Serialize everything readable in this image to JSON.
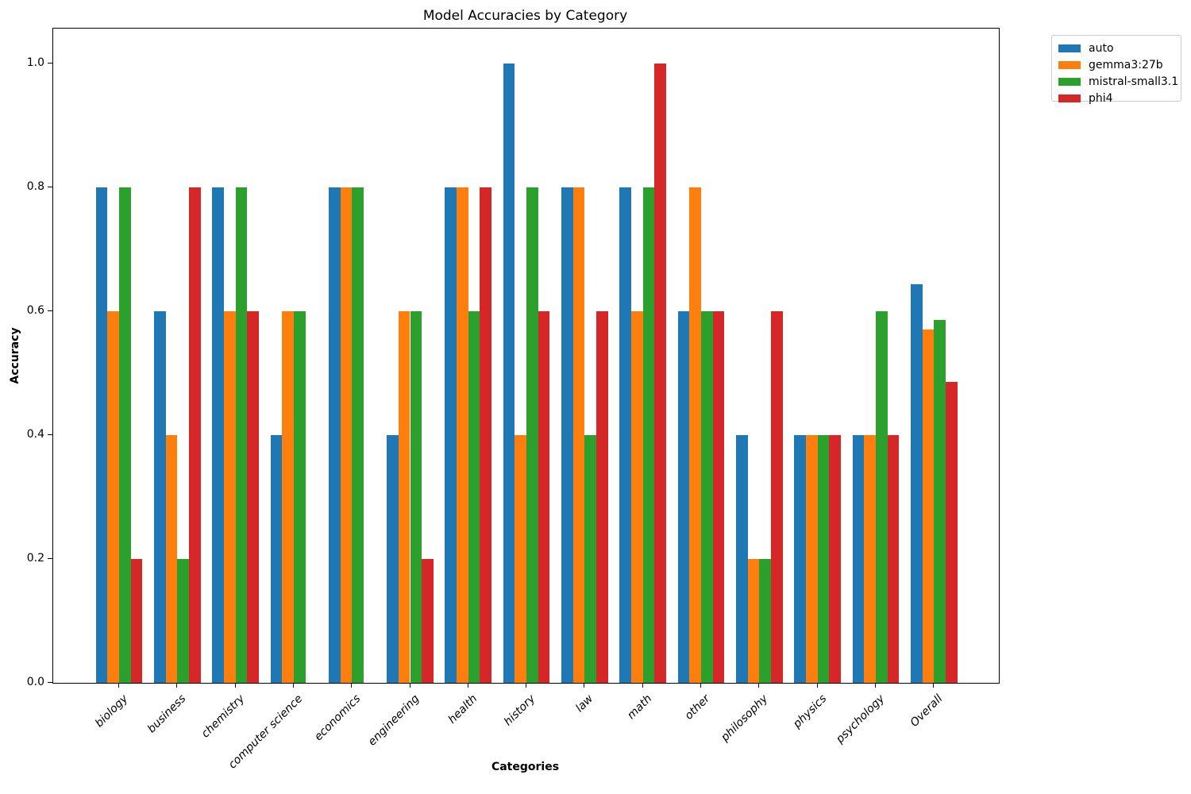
{
  "title": "Model Accuracies by Category",
  "axes": {
    "x_label": "Categories",
    "y_label": "Accuracy",
    "y_tick_labels": [
      "0.0",
      "0.2",
      "0.4",
      "0.6",
      "0.8",
      "1.0"
    ]
  },
  "chart_data": {
    "type": "bar",
    "title": "Model Accuracies by Category",
    "xlabel": "Categories",
    "ylabel": "Accuracy",
    "ylim": [
      0,
      1.056
    ],
    "grid": false,
    "legend_position": "upper right, outside plot area",
    "categories": [
      "biology",
      "business",
      "chemistry",
      "computer science",
      "economics",
      "engineering",
      "health",
      "history",
      "law",
      "math",
      "other",
      "philosophy",
      "physics",
      "psychology",
      "Overall"
    ],
    "series": [
      {
        "name": "auto",
        "color": "#1f77b4",
        "values": [
          0.8,
          0.6,
          0.8,
          0.4,
          0.8,
          0.4,
          0.8,
          1.0,
          0.8,
          0.8,
          0.6,
          0.4,
          0.4,
          0.4,
          0.643
        ]
      },
      {
        "name": "gemma3:27b",
        "color": "#ff7f0e",
        "values": [
          0.6,
          0.4,
          0.6,
          0.6,
          0.8,
          0.6,
          0.8,
          0.4,
          0.8,
          0.6,
          0.8,
          0.2,
          0.4,
          0.4,
          0.571
        ]
      },
      {
        "name": "mistral-small3.1",
        "color": "#2ca02c",
        "values": [
          0.8,
          0.2,
          0.8,
          0.6,
          0.8,
          0.6,
          0.6,
          0.8,
          0.4,
          0.8,
          0.6,
          0.2,
          0.4,
          0.6,
          0.586
        ]
      },
      {
        "name": "phi4",
        "color": "#d62728",
        "values": [
          0.2,
          0.8,
          0.6,
          0.0,
          0.0,
          0.2,
          0.8,
          0.6,
          0.6,
          1.0,
          0.6,
          0.6,
          0.4,
          0.4,
          0.486
        ]
      }
    ]
  }
}
